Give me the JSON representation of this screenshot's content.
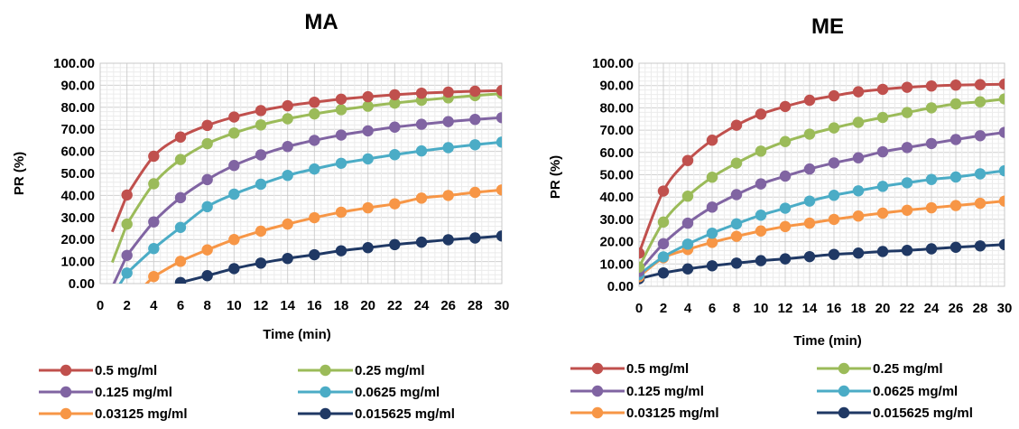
{
  "colors": [
    "#c0504d",
    "#9bbb59",
    "#8064a2",
    "#4bacc6",
    "#f79646",
    "#1f3864"
  ],
  "chart_data": [
    {
      "type": "line",
      "title": "MA",
      "xlabel": "Time (min)",
      "ylabel": "PR (%)",
      "xlim": [
        0,
        30
      ],
      "ylim": [
        0,
        100
      ],
      "x_ticks": [
        "0",
        "2",
        "4",
        "6",
        "8",
        "10",
        "12",
        "14",
        "16",
        "18",
        "20",
        "22",
        "24",
        "26",
        "28",
        "30"
      ],
      "y_ticks": [
        "0.00",
        "10.00",
        "20.00",
        "30.00",
        "40.00",
        "50.00",
        "60.00",
        "70.00",
        "80.00",
        "90.00",
        "100.00"
      ],
      "grid": true,
      "legend": "bottom",
      "series": [
        {
          "name": "0.5 mg/ml",
          "x": [
            2,
            4,
            6,
            8,
            10,
            12,
            14,
            16,
            18,
            20,
            22,
            24,
            26,
            28,
            30
          ],
          "values": [
            40.2,
            57.8,
            66.5,
            71.8,
            75.6,
            78.5,
            80.7,
            82.3,
            83.7,
            84.8,
            85.7,
            86.4,
            86.9,
            87.3,
            87.6
          ]
        },
        {
          "name": "0.25 mg/ml",
          "x": [
            2,
            4,
            6,
            8,
            10,
            12,
            14,
            16,
            18,
            20,
            22,
            24,
            26,
            28,
            30
          ],
          "values": [
            27.0,
            45.3,
            56.3,
            63.5,
            68.3,
            72.0,
            74.8,
            77.0,
            78.9,
            80.5,
            81.9,
            83.2,
            84.3,
            85.3,
            86.2
          ]
        },
        {
          "name": "0.125 mg/ml",
          "x": [
            2,
            4,
            6,
            8,
            10,
            12,
            14,
            16,
            18,
            20,
            22,
            24,
            26,
            28,
            30
          ],
          "values": [
            12.8,
            28.0,
            39.0,
            47.2,
            53.6,
            58.4,
            62.2,
            65.0,
            67.4,
            69.3,
            71.0,
            72.3,
            73.5,
            74.5,
            75.3
          ]
        },
        {
          "name": "0.0625 mg/ml",
          "x": [
            2,
            4,
            6,
            8,
            10,
            12,
            14,
            16,
            18,
            20,
            22,
            24,
            26,
            28,
            30
          ],
          "values": [
            4.8,
            15.9,
            25.5,
            34.9,
            40.6,
            45.1,
            49.1,
            52.0,
            54.6,
            56.6,
            58.5,
            60.2,
            61.7,
            63.0,
            64.2
          ]
        },
        {
          "name": "0.03125 mg/ml",
          "x": [
            4,
            6,
            8,
            10,
            12,
            14,
            16,
            18,
            20,
            22,
            24,
            26,
            28,
            30
          ],
          "values": [
            3.2,
            10.1,
            15.3,
            20.0,
            23.8,
            27.0,
            29.9,
            32.4,
            34.4,
            36.2,
            38.8,
            40.0,
            41.4,
            42.5
          ]
        },
        {
          "name": "0.015625 mg/ml",
          "x": [
            6,
            8,
            10,
            12,
            14,
            16,
            18,
            20,
            22,
            24,
            26,
            28,
            30
          ],
          "values": [
            0.5,
            3.6,
            6.8,
            9.3,
            11.4,
            13.1,
            14.9,
            16.3,
            17.7,
            18.8,
            19.9,
            20.7,
            21.6
          ]
        }
      ]
    },
    {
      "type": "line",
      "title": "ME",
      "xlabel": "Time (min)",
      "ylabel": "PR (%)",
      "xlim": [
        0,
        30
      ],
      "ylim": [
        0,
        100
      ],
      "x_ticks": [
        "0",
        "2",
        "4",
        "6",
        "8",
        "10",
        "12",
        "14",
        "16",
        "18",
        "20",
        "22",
        "24",
        "26",
        "28",
        "30"
      ],
      "y_ticks": [
        "0.00",
        "10.00",
        "20.00",
        "30.00",
        "40.00",
        "50.00",
        "60.00",
        "70.00",
        "80.00",
        "90.00",
        "100.00"
      ],
      "grid": true,
      "legend": "bottom",
      "series": [
        {
          "name": "0.5 mg/ml",
          "x": [
            0,
            2,
            4,
            6,
            8,
            10,
            12,
            14,
            16,
            18,
            20,
            22,
            24,
            26,
            28,
            30
          ],
          "values": [
            14.9,
            42.7,
            56.4,
            65.5,
            72.2,
            77.2,
            80.6,
            83.4,
            85.4,
            87.2,
            88.3,
            89.2,
            89.8,
            90.2,
            90.4,
            90.6
          ]
        },
        {
          "name": "0.25 mg/ml",
          "x": [
            0,
            2,
            4,
            6,
            8,
            10,
            12,
            14,
            16,
            18,
            20,
            22,
            24,
            26,
            28,
            30
          ],
          "values": [
            8.6,
            28.8,
            40.4,
            48.9,
            55.2,
            60.6,
            64.9,
            68.2,
            71.0,
            73.5,
            75.7,
            77.9,
            80.0,
            81.8,
            82.7,
            84.0
          ]
        },
        {
          "name": "0.125 mg/ml",
          "x": [
            0,
            2,
            4,
            6,
            8,
            10,
            12,
            14,
            16,
            18,
            20,
            22,
            24,
            26,
            28,
            30
          ],
          "values": [
            6.7,
            19.1,
            28.3,
            35.5,
            41.1,
            45.9,
            49.4,
            52.6,
            55.3,
            57.6,
            60.3,
            62.2,
            64.0,
            65.8,
            67.5,
            69.0
          ]
        },
        {
          "name": "0.0625 mg/ml",
          "x": [
            0,
            2,
            4,
            6,
            8,
            10,
            12,
            14,
            16,
            18,
            20,
            22,
            24,
            26,
            28,
            30
          ],
          "values": [
            5.2,
            13.2,
            18.9,
            23.8,
            28.0,
            31.9,
            35.0,
            38.2,
            40.8,
            42.8,
            44.8,
            46.4,
            47.9,
            49.0,
            50.4,
            51.8
          ]
        },
        {
          "name": "0.03125 mg/ml",
          "x": [
            0,
            2,
            4,
            6,
            8,
            10,
            12,
            14,
            16,
            18,
            20,
            22,
            24,
            26,
            28,
            30
          ],
          "values": [
            4.3,
            12.8,
            16.5,
            19.7,
            22.4,
            24.8,
            26.8,
            28.3,
            30.0,
            31.5,
            32.8,
            34.1,
            35.2,
            36.2,
            37.2,
            38.2
          ]
        },
        {
          "name": "0.015625 mg/ml",
          "x": [
            0,
            2,
            4,
            6,
            8,
            10,
            12,
            14,
            16,
            18,
            20,
            22,
            24,
            26,
            28,
            30
          ],
          "values": [
            3.4,
            6.0,
            7.8,
            9.2,
            10.4,
            11.5,
            12.3,
            13.3,
            14.3,
            14.9,
            15.6,
            16.1,
            16.8,
            17.5,
            18.1,
            18.7
          ]
        }
      ]
    }
  ]
}
